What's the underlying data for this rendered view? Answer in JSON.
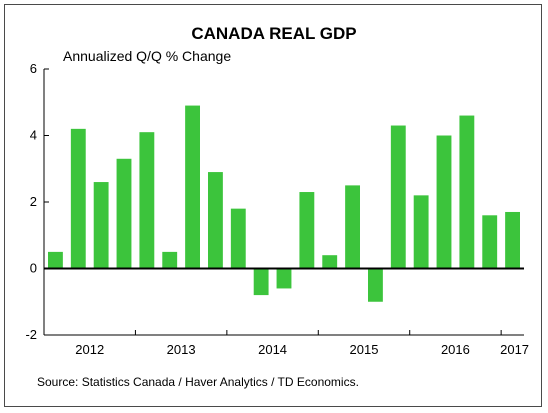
{
  "chart_data": {
    "type": "bar",
    "title": "CANADA REAL GDP",
    "ylabel": "Annualized Q/Q % Change",
    "xlabel": "",
    "source": "Source: Statistics Canada / Haver Analytics / TD Economics.",
    "ylim": [
      -2,
      6
    ],
    "yticks": [
      "-2",
      "0",
      "2",
      "4",
      "6"
    ],
    "year_labels": [
      "2012",
      "2013",
      "2014",
      "2015",
      "2016",
      "2017"
    ],
    "categories": [
      "2012Q1",
      "2012Q2",
      "2012Q3",
      "2012Q4",
      "2013Q1",
      "2013Q2",
      "2013Q3",
      "2013Q4",
      "2014Q1",
      "2014Q2",
      "2014Q3",
      "2014Q4",
      "2015Q1",
      "2015Q2",
      "2015Q3",
      "2015Q4",
      "2016Q1",
      "2016Q2",
      "2016Q3",
      "2016Q4",
      "2017Q1"
    ],
    "values": [
      0.5,
      4.2,
      2.6,
      3.3,
      4.1,
      0.5,
      4.9,
      2.9,
      1.8,
      -0.8,
      -0.6,
      2.3,
      0.4,
      2.5,
      -1.0,
      4.3,
      2.2,
      4.0,
      4.6,
      1.6,
      1.7
    ],
    "bar_color": "#3CC43C",
    "grid": false,
    "legend": "none"
  }
}
